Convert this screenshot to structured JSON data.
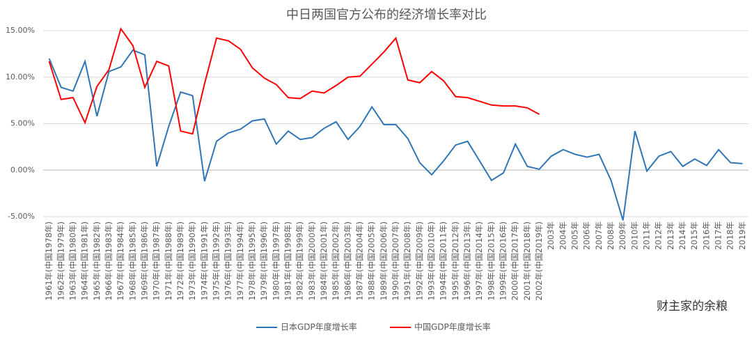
{
  "chart_data": {
    "type": "line",
    "title": "中日两国官方公布的经济增长率对比",
    "categories": [
      "1961年(中国1978年)",
      "1962年(中国1979年)",
      "1963年(中国1980年)",
      "1964年(中国1981年)",
      "1965年(中国1982年)",
      "1966年(中国1983年)",
      "1967年(中国1984年)",
      "1968年(中国1985年)",
      "1969年(中国1986年)",
      "1970年(中国1987年)",
      "1971年(中国1988年)",
      "1972年(中国1989年)",
      "1973年(中国1990年)",
      "1974年(中国1991年)",
      "1975年(中国1992年)",
      "1976年(中国1993年)",
      "1977年(中国1994年)",
      "1978年(中国1995年)",
      "1979年(中国1996年)",
      "1980年(中国1997年)",
      "1981年(中国1998年)",
      "1982年(中国1999年)",
      "1983年(中国2000年)",
      "1984年(中国2001年)",
      "1985年(中国2002年)",
      "1986年(中国2003年)",
      "1987年(中国2004年)",
      "1988年(中国2005年)",
      "1989年(中国2006年)",
      "1990年(中国2007年)",
      "1991年(中国2008年)",
      "1992年(中国2009年)",
      "1993年(中国2010年)",
      "1994年(中国2011年)",
      "1995年(中国2012年)",
      "1996年(中国2013年)",
      "1997年(中国2014年)",
      "1998年(中国2015年)",
      "1999年(中国2016年)",
      "2000年(中国2017年)",
      "2001年(中国2018年)",
      "2002年(中国2019年)",
      "2003年",
      "2004年",
      "2005年",
      "2006年",
      "2007年",
      "2008年",
      "2009年",
      "2010年",
      "2011年",
      "2012年",
      "2013年",
      "2014年",
      "2015年",
      "2016年",
      "2017年",
      "2018年",
      "2019年"
    ],
    "series": [
      {
        "name": "日本GDP年度增长率",
        "color": "#2e75b6",
        "values": [
          12.0,
          8.9,
          8.5,
          11.7,
          5.8,
          10.6,
          11.1,
          12.9,
          12.4,
          0.4,
          4.7,
          8.4,
          8.0,
          -1.2,
          3.1,
          4.0,
          4.4,
          5.3,
          5.5,
          2.8,
          4.2,
          3.3,
          3.5,
          4.5,
          5.2,
          3.3,
          4.7,
          6.8,
          4.9,
          4.9,
          3.4,
          0.8,
          -0.5,
          1.0,
          2.7,
          3.1,
          1.0,
          -1.1,
          -0.3,
          2.8,
          0.4,
          0.1,
          1.5,
          2.2,
          1.7,
          1.4,
          1.7,
          -1.1,
          -5.4,
          4.2,
          -0.1,
          1.5,
          2.0,
          0.4,
          1.2,
          0.5,
          2.2,
          0.8,
          0.7
        ]
      },
      {
        "name": "中国GDP年度增长率",
        "color": "#ff0000",
        "values": [
          11.7,
          7.6,
          7.8,
          5.1,
          9.0,
          10.8,
          15.2,
          13.4,
          8.9,
          11.7,
          11.2,
          4.2,
          3.9,
          9.3,
          14.2,
          13.9,
          13.0,
          11.0,
          9.9,
          9.2,
          7.8,
          7.7,
          8.5,
          8.3,
          9.1,
          10.0,
          10.1,
          11.4,
          12.7,
          14.2,
          9.7,
          9.4,
          10.6,
          9.6,
          7.9,
          7.8,
          7.4,
          7.0,
          6.9,
          6.9,
          6.7,
          6.0,
          null,
          null,
          null,
          null,
          null,
          null,
          null,
          null,
          null,
          null,
          null,
          null,
          null,
          null,
          null,
          null,
          null
        ]
      }
    ],
    "ylim": [
      -5,
      15
    ],
    "yticks": [
      {
        "value": -5,
        "label": "-5.00%"
      },
      {
        "value": 0,
        "label": "0.00%"
      },
      {
        "value": 5,
        "label": "5.00%"
      },
      {
        "value": 10,
        "label": "10.00%"
      },
      {
        "value": 15,
        "label": "15.00%"
      }
    ],
    "grid": true,
    "legend": "bottom",
    "watermark": "财主家的余粮"
  }
}
